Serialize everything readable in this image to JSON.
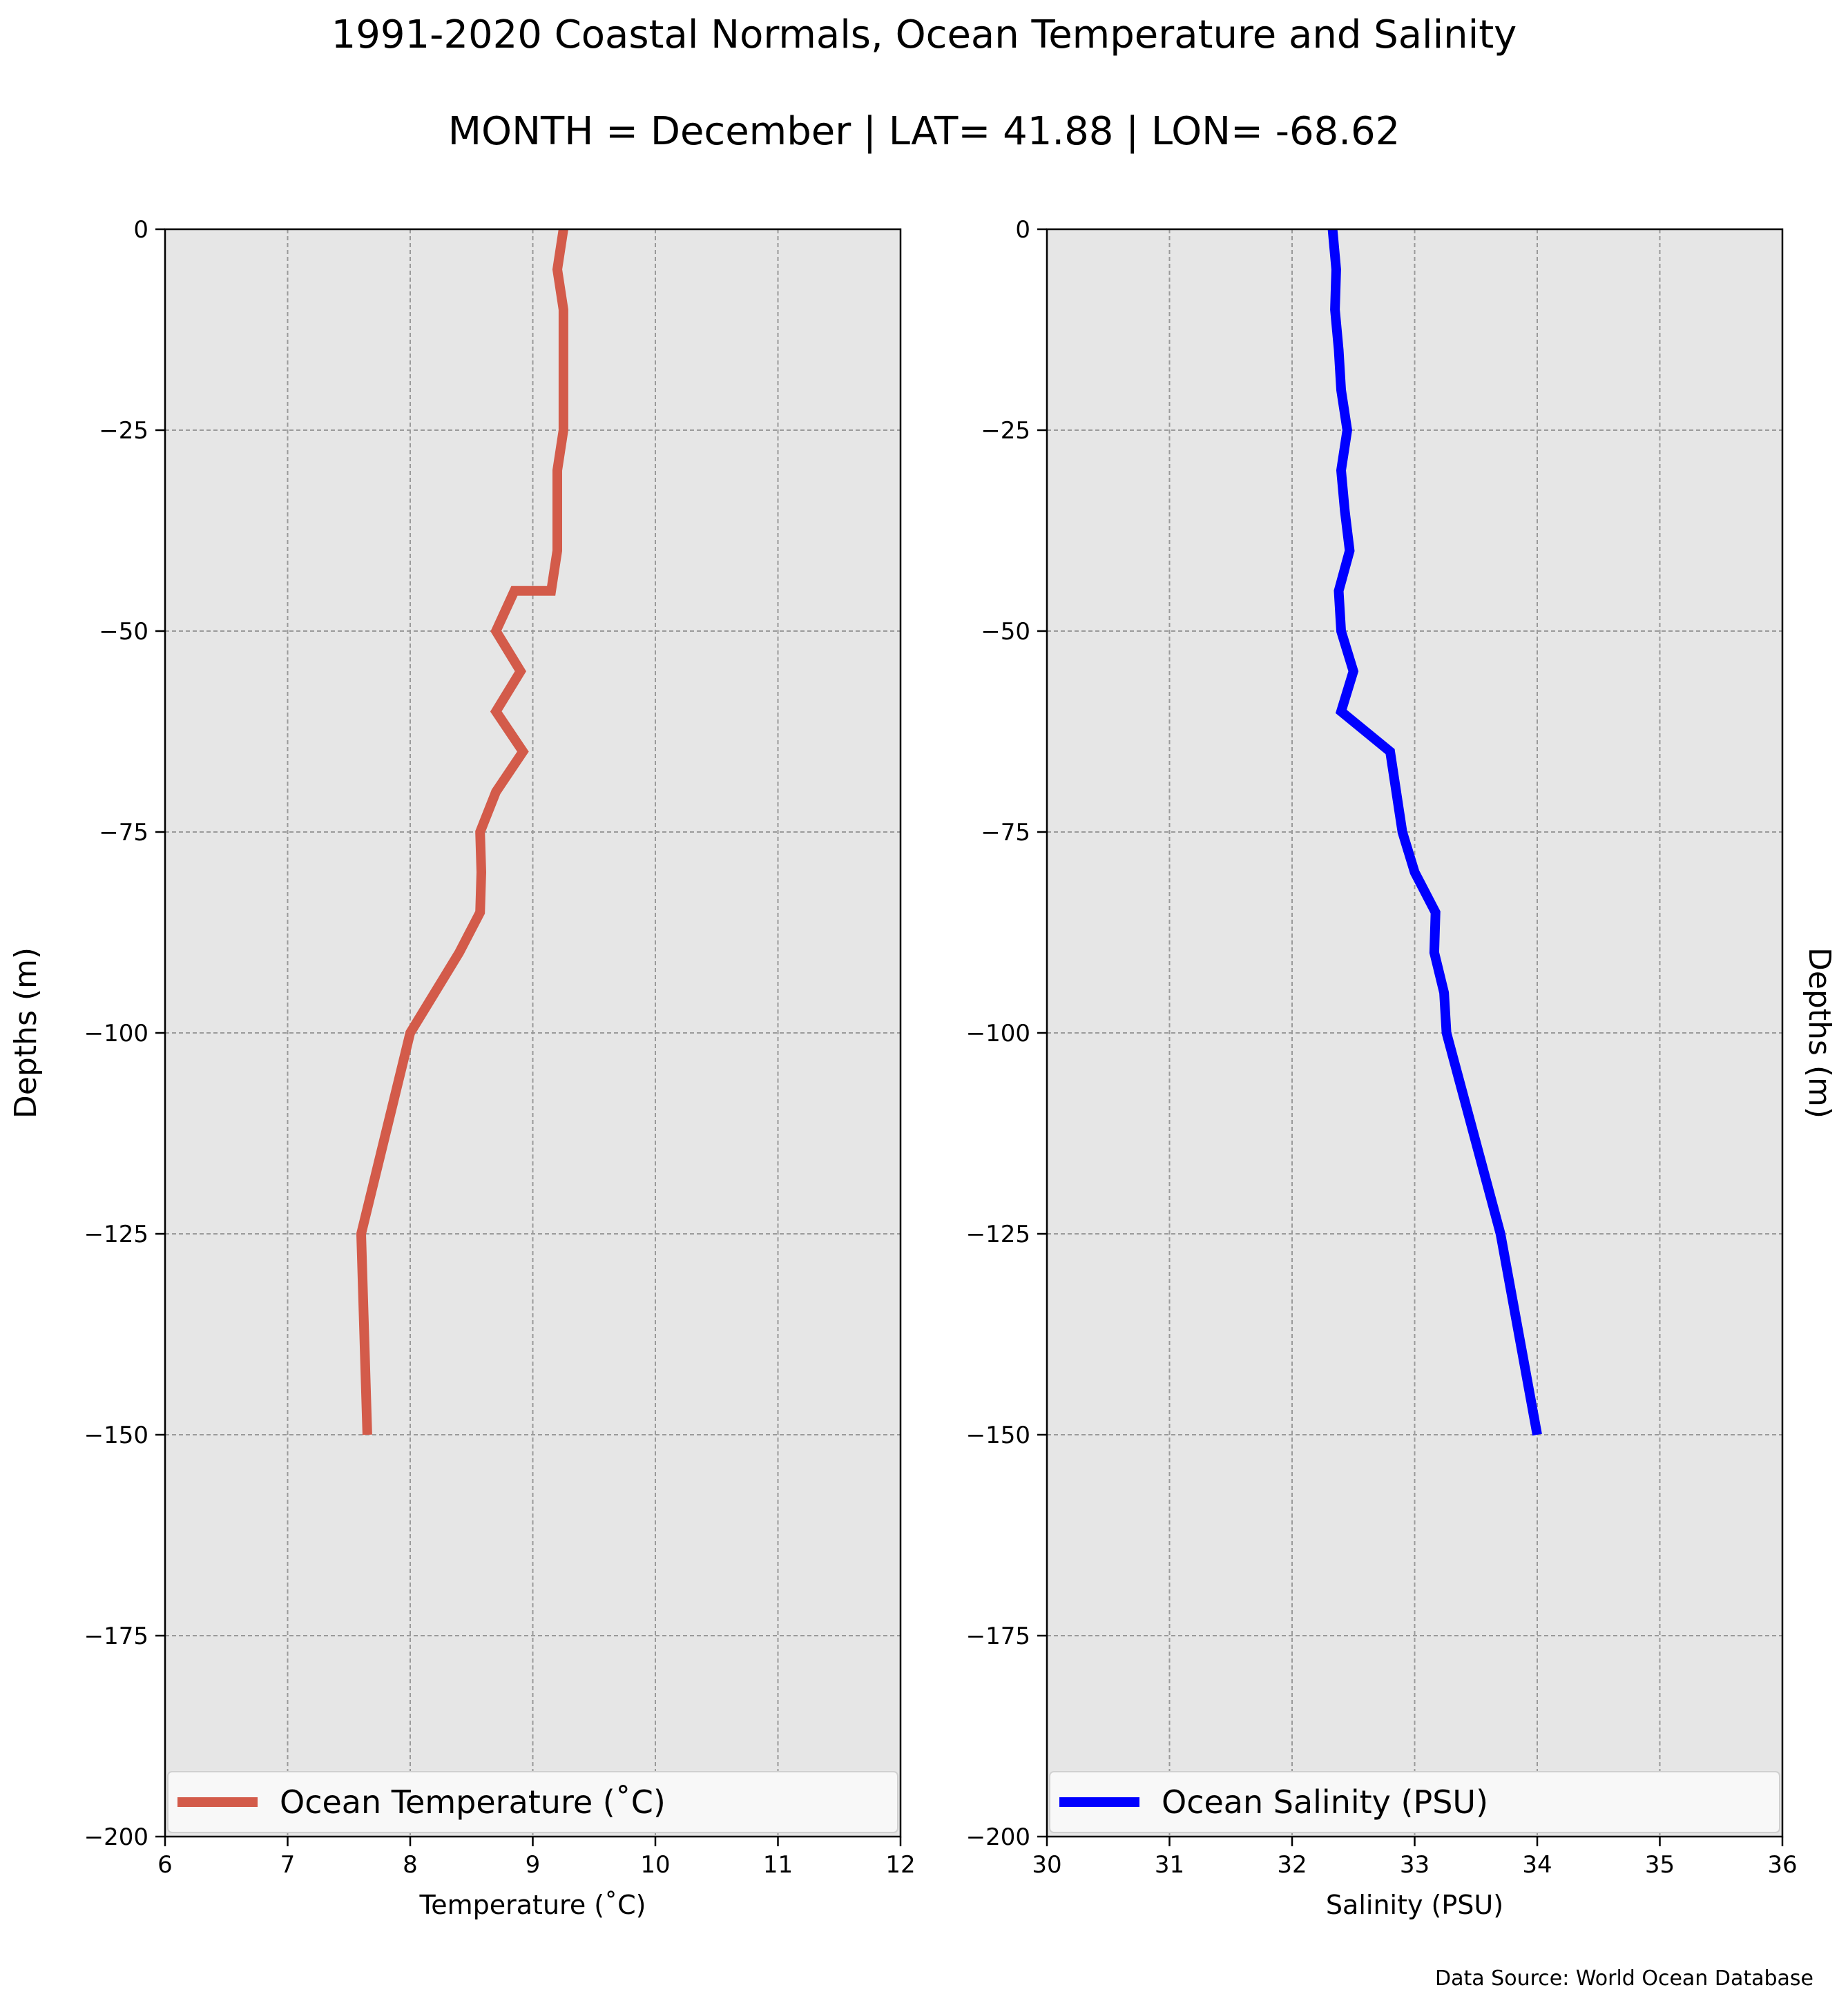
{
  "title": "1991-2020 Coastal Normals, Ocean Temperature and Salinity",
  "subtitle": "MONTH = December | LAT= 41.88 | LON= -68.62",
  "source": "Data Source: World Ocean Database",
  "chart_data": [
    {
      "type": "line",
      "xlabel": "Temperature (˚C)",
      "ylabel": "Depths (m)",
      "xlim": [
        6,
        12
      ],
      "ylim": [
        -200,
        0
      ],
      "xticks": [
        "6",
        "7",
        "8",
        "9",
        "10",
        "11",
        "12"
      ],
      "yticks": [
        "0",
        "−25",
        "−50",
        "−75",
        "−100",
        "−125",
        "−150",
        "−175",
        "−200"
      ],
      "grid": true,
      "background": "#e6e6e6",
      "legend_position": "lower center",
      "series": [
        {
          "name": "Ocean Temperature (˚C)",
          "color": "#d35b4a",
          "x": [
            9.25,
            9.2,
            9.25,
            9.25,
            9.25,
            9.25,
            9.2,
            9.2,
            9.2,
            9.15,
            8.85,
            8.7,
            8.9,
            8.7,
            8.92,
            8.7,
            8.57,
            8.58,
            8.57,
            8.4,
            8.2,
            8.0,
            7.6,
            7.65
          ],
          "y": [
            0,
            -5,
            -10,
            -15,
            -20,
            -25,
            -30,
            -35,
            -40,
            -45,
            -45,
            -50,
            -55,
            -60,
            -65,
            -70,
            -75,
            -80,
            -85,
            -90,
            -95,
            -100,
            -125,
            -150
          ]
        }
      ]
    },
    {
      "type": "line",
      "xlabel": "Salinity (PSU)",
      "ylabel": "Depths (m)",
      "xlim": [
        30,
        36
      ],
      "ylim": [
        -200,
        0
      ],
      "xticks": [
        "30",
        "31",
        "32",
        "33",
        "34",
        "35",
        "36"
      ],
      "yticks": [
        "0",
        "−25",
        "−50",
        "−75",
        "−100",
        "−125",
        "−150",
        "−175",
        "−200"
      ],
      "grid": true,
      "background": "#e6e6e6",
      "legend_position": "lower center",
      "series": [
        {
          "name": "Ocean Salinity (PSU)",
          "color": "#0000ff",
          "x": [
            32.33,
            32.36,
            32.35,
            32.38,
            32.4,
            32.45,
            32.4,
            32.43,
            32.47,
            32.38,
            32.4,
            32.5,
            32.4,
            32.8,
            32.9,
            33.0,
            33.17,
            33.16,
            33.24,
            33.26,
            33.7,
            34.0
          ],
          "y": [
            0,
            -5,
            -10,
            -15,
            -20,
            -25,
            -30,
            -35,
            -40,
            -45,
            -50,
            -55,
            -60,
            -65,
            -75,
            -80,
            -85,
            -90,
            -95,
            -100,
            -125,
            -150
          ]
        }
      ]
    }
  ]
}
